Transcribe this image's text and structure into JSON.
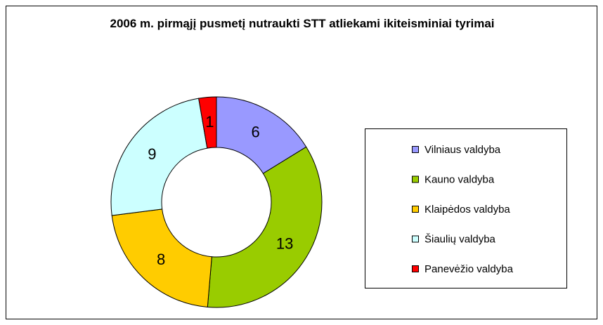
{
  "chart_data": {
    "type": "donut",
    "title": "2006 m. pirmąjį pusmetį nutraukti STT atliekami ikiteisminiai tyrimai",
    "categories": [
      "Vilniaus valdyba",
      "Kauno valdyba",
      "Klaipėdos valdyba",
      "Šiaulių valdyba",
      "Panevėžio valdyba"
    ],
    "values": [
      6,
      13,
      8,
      9,
      1
    ],
    "colors": [
      "#9999ff",
      "#99cc00",
      "#ffcc00",
      "#ccffff",
      "#ff0000"
    ],
    "legend": "right"
  }
}
